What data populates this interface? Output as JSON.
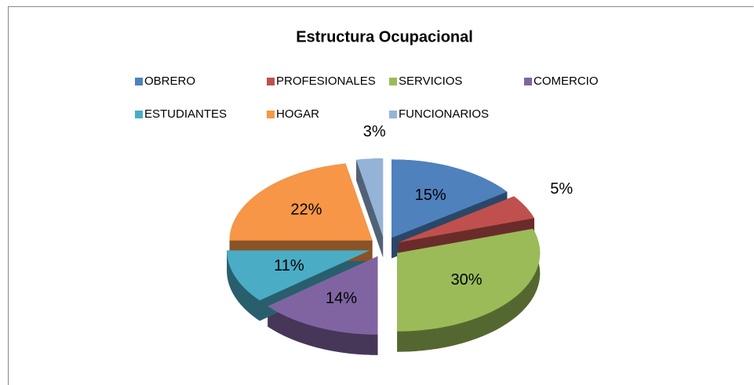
{
  "chart_data": {
    "type": "pie",
    "title": "Estructura Ocupacional",
    "categories": [
      "OBRERO",
      "PROFESIONALES",
      "SERVICIOS",
      "COMERCIO",
      "ESTUDIANTES",
      "HOGAR",
      "FUNCIONARIOS"
    ],
    "values": [
      15,
      5,
      30,
      14,
      11,
      22,
      3
    ],
    "value_labels": [
      "15%",
      "5%",
      "30%",
      "14%",
      "11%",
      "22%",
      "3%"
    ],
    "colors": [
      "#4f81bd",
      "#c0504d",
      "#9bbb59",
      "#8064a2",
      "#4bacc6",
      "#f79646",
      "#95b3d7"
    ],
    "legend": "top"
  }
}
